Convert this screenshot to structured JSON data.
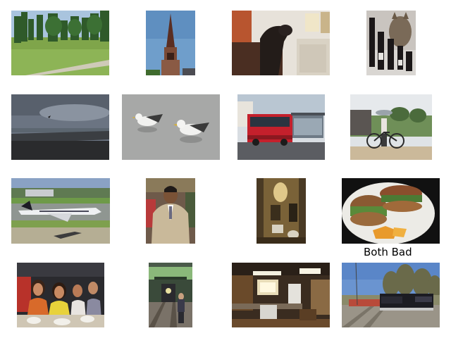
{
  "grid": {
    "captions": {
      "row3_col4": "Both Bad"
    },
    "thumbnails": [
      {
        "subject": "park-lawn-with-trees"
      },
      {
        "subject": "church-steeple"
      },
      {
        "subject": "dog-on-chair-kitchen"
      },
      {
        "subject": "cat-with-wine-bottles"
      },
      {
        "subject": "beach-kite-cloudy-sky"
      },
      {
        "subject": "two-seagulls-on-water"
      },
      {
        "subject": "red-bus-at-stop"
      },
      {
        "subject": "person-with-bicycle-umbrella"
      },
      {
        "subject": "private-jet-on-runway"
      },
      {
        "subject": "man-in-beige-suit"
      },
      {
        "subject": "bathroom-toilet"
      },
      {
        "subject": "sandwich-on-plate"
      },
      {
        "subject": "group-of-people-at-table"
      },
      {
        "subject": "man-by-train-in-station"
      },
      {
        "subject": "kitchen-interior"
      },
      {
        "subject": "freight-train-on-tracks"
      }
    ]
  }
}
